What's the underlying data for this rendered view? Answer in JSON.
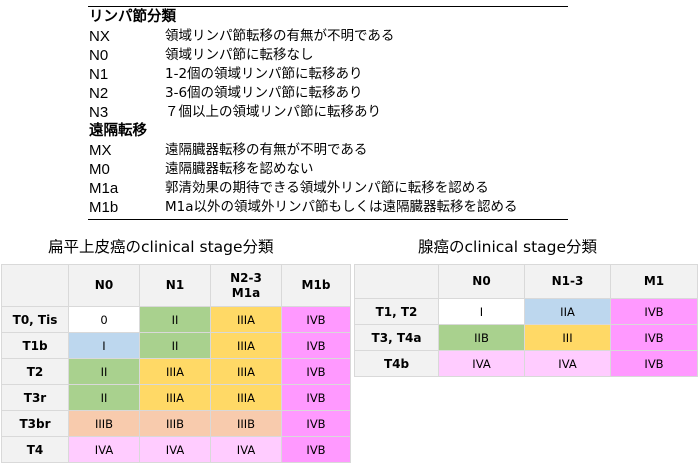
{
  "definitions": {
    "n_section": {
      "heading": "リンパ節分類",
      "rows": [
        {
          "code": "NX",
          "desc": "領域リンパ節転移の有無が不明である"
        },
        {
          "code": "N0",
          "desc": "領域リンパ節に転移なし"
        },
        {
          "code": "N1",
          "desc": "1-2個の領域リンパ節に転移あり"
        },
        {
          "code": "N2",
          "desc": "3-6個の領域リンパ節に転移あり"
        },
        {
          "code": "N3",
          "desc": "７個以上の領域リンパ節に転移あり"
        }
      ]
    },
    "m_section": {
      "heading": "遠隔転移",
      "rows": [
        {
          "code": "MX",
          "desc": "遠隔臓器転移の有無が不明である"
        },
        {
          "code": "M0",
          "desc": "遠隔臓器転移を認めない"
        },
        {
          "code": "M1a",
          "desc": "郭清効果の期待できる領域外リンパ節に転移を認める"
        },
        {
          "code": "M1b",
          "desc": "M1a以外の領域外リンパ節もしくは遠隔臓器転移を認める"
        }
      ]
    }
  },
  "colors": {
    "header_gray": "#f2f2f2",
    "stage_0": "#ffffff",
    "stage_I": "#bdd7ee",
    "stage_II": "#a9d18e",
    "stage_III": "#ffd966",
    "stage_IIIB": "#f8cbad",
    "stage_IVA": "#ffccff",
    "stage_IVB": "#ff99ff"
  },
  "squamous_table": {
    "title": "扁平上皮癌のclinical stage分類",
    "columns": [
      "N0",
      "N1",
      "N2-3\nM1a",
      "M1b"
    ],
    "rows": [
      {
        "label": "T0, Tis",
        "cells": [
          {
            "v": "0",
            "c": "stage_0"
          },
          {
            "v": "II",
            "c": "stage_II"
          },
          {
            "v": "IIIA",
            "c": "stage_III"
          },
          {
            "v": "IVB",
            "c": "stage_IVB"
          }
        ]
      },
      {
        "label": "T1b",
        "cells": [
          {
            "v": "I",
            "c": "stage_I"
          },
          {
            "v": "II",
            "c": "stage_II"
          },
          {
            "v": "IIIA",
            "c": "stage_III"
          },
          {
            "v": "IVB",
            "c": "stage_IVB"
          }
        ]
      },
      {
        "label": "T2",
        "cells": [
          {
            "v": "II",
            "c": "stage_II"
          },
          {
            "v": "IIIA",
            "c": "stage_III"
          },
          {
            "v": "IIIA",
            "c": "stage_III"
          },
          {
            "v": "IVB",
            "c": "stage_IVB"
          }
        ]
      },
      {
        "label": "T3r",
        "cells": [
          {
            "v": "II",
            "c": "stage_II"
          },
          {
            "v": "IIIA",
            "c": "stage_III"
          },
          {
            "v": "IIIA",
            "c": "stage_III"
          },
          {
            "v": "IVB",
            "c": "stage_IVB"
          }
        ]
      },
      {
        "label": "T3br",
        "cells": [
          {
            "v": "IIIB",
            "c": "stage_IIIB"
          },
          {
            "v": "IIIB",
            "c": "stage_IIIB"
          },
          {
            "v": "IIIB",
            "c": "stage_IIIB"
          },
          {
            "v": "IVB",
            "c": "stage_IVB"
          }
        ]
      },
      {
        "label": "T4",
        "cells": [
          {
            "v": "IVA",
            "c": "stage_IVA"
          },
          {
            "v": "IVA",
            "c": "stage_IVA"
          },
          {
            "v": "IVA",
            "c": "stage_IVA"
          },
          {
            "v": "IVB",
            "c": "stage_IVB"
          }
        ]
      }
    ]
  },
  "adeno_table": {
    "title": "腺癌のclinical stage分類",
    "columns": [
      "N0",
      "N1-3",
      "M1"
    ],
    "rows": [
      {
        "label": "T1, T2",
        "cells": [
          {
            "v": "I",
            "c": "stage_0"
          },
          {
            "v": "IIA",
            "c": "stage_I"
          },
          {
            "v": "IVB",
            "c": "stage_IVB"
          }
        ]
      },
      {
        "label": "T3, T4a",
        "cells": [
          {
            "v": "IIB",
            "c": "stage_II"
          },
          {
            "v": "III",
            "c": "stage_III"
          },
          {
            "v": "IVB",
            "c": "stage_IVB"
          }
        ]
      },
      {
        "label": "T4b",
        "cells": [
          {
            "v": "IVA",
            "c": "stage_IVA"
          },
          {
            "v": "IVA",
            "c": "stage_IVA"
          },
          {
            "v": "IVB",
            "c": "stage_IVB"
          }
        ]
      }
    ]
  }
}
